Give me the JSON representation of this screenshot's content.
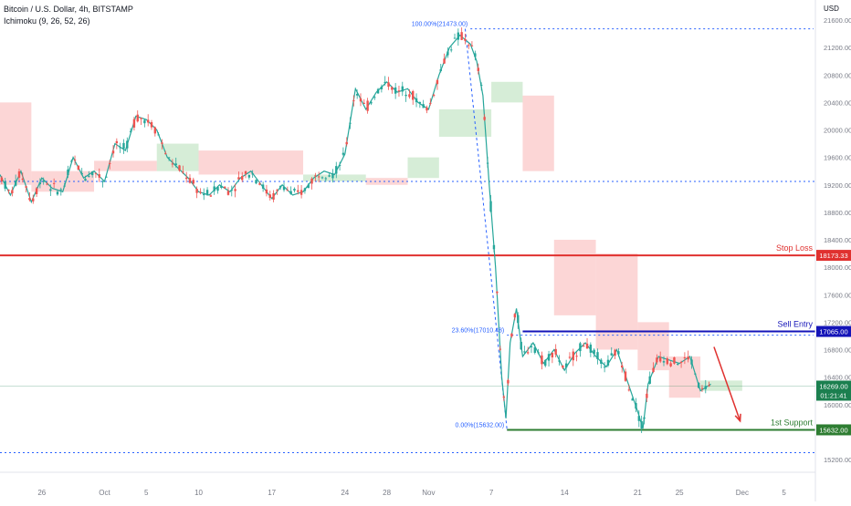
{
  "chart_data": {
    "type": "candlestick",
    "title": "Bitcoin / U.S. Dollar, 4h, BITSTAMP",
    "indicator": "Ichimoku (9, 26, 52, 26)",
    "currency_label": "USD",
    "ylim": [
      15000,
      21600
    ],
    "x_ticks": [
      {
        "label": "26",
        "day": -5
      },
      {
        "label": "Oct",
        "day": 1
      },
      {
        "label": "5",
        "day": 5
      },
      {
        "label": "10",
        "day": 10
      },
      {
        "label": "17",
        "day": 17
      },
      {
        "label": "24",
        "day": 24
      },
      {
        "label": "28",
        "day": 28
      },
      {
        "label": "Nov",
        "day": 32
      },
      {
        "label": "7",
        "day": 38
      },
      {
        "label": "14",
        "day": 45
      },
      {
        "label": "21",
        "day": 52
      },
      {
        "label": "25",
        "day": 56
      },
      {
        "label": "Dec",
        "day": 62
      },
      {
        "label": "5",
        "day": 66
      }
    ],
    "y_ticks": [
      "21600.00",
      "21200.00",
      "20800.00",
      "20400.00",
      "20000.00",
      "19600.00",
      "19200.00",
      "18800.00",
      "18400.00",
      "18000.00",
      "17600.00",
      "17200.00",
      "16800.00",
      "16400.00",
      "16000.00",
      "15600.00",
      "15200.00"
    ],
    "y_tick_values": [
      21600,
      21200,
      20800,
      20400,
      20000,
      19600,
      19200,
      18800,
      18400,
      18000,
      17600,
      17200,
      16800,
      16400,
      16000,
      15600,
      15200
    ],
    "price_path": [
      [
        -9,
        19350
      ],
      [
        -8,
        19050
      ],
      [
        -7,
        19400
      ],
      [
        -6,
        18950
      ],
      [
        -5,
        19300
      ],
      [
        -4,
        19150
      ],
      [
        -3,
        19100
      ],
      [
        -2,
        19600
      ],
      [
        -1,
        19300
      ],
      [
        0,
        19400
      ],
      [
        1,
        19250
      ],
      [
        2,
        19800
      ],
      [
        3,
        19700
      ],
      [
        4,
        20200
      ],
      [
        5,
        20150
      ],
      [
        6,
        20000
      ],
      [
        7,
        19600
      ],
      [
        8,
        19450
      ],
      [
        9,
        19300
      ],
      [
        10,
        19100
      ],
      [
        11,
        19050
      ],
      [
        12,
        19200
      ],
      [
        13,
        19100
      ],
      [
        14,
        19300
      ],
      [
        15,
        19400
      ],
      [
        16,
        19200
      ],
      [
        17,
        19000
      ],
      [
        18,
        19200
      ],
      [
        19,
        19050
      ],
      [
        20,
        19100
      ],
      [
        21,
        19300
      ],
      [
        22,
        19400
      ],
      [
        23,
        19350
      ],
      [
        24,
        19650
      ],
      [
        25,
        20600
      ],
      [
        26,
        20300
      ],
      [
        27,
        20550
      ],
      [
        28,
        20700
      ],
      [
        29,
        20550
      ],
      [
        30,
        20600
      ],
      [
        31,
        20400
      ],
      [
        32,
        20300
      ],
      [
        33,
        20800
      ],
      [
        34,
        21200
      ],
      [
        35,
        21380
      ],
      [
        36,
        21250
      ],
      [
        36.6,
        21000
      ],
      [
        37.2,
        20500
      ],
      [
        37.8,
        19200
      ],
      [
        38.4,
        18000
      ],
      [
        39.0,
        16400
      ],
      [
        39.4,
        15800
      ],
      [
        39.8,
        16900
      ],
      [
        40.4,
        17400
      ],
      [
        41,
        16700
      ],
      [
        42,
        16900
      ],
      [
        43,
        16600
      ],
      [
        44,
        16800
      ],
      [
        45,
        16500
      ],
      [
        46,
        16750
      ],
      [
        47,
        16900
      ],
      [
        48,
        16700
      ],
      [
        49,
        16550
      ],
      [
        50,
        16800
      ],
      [
        51,
        16350
      ],
      [
        52,
        15900
      ],
      [
        52.5,
        15650
      ],
      [
        53,
        16300
      ],
      [
        54,
        16700
      ],
      [
        55,
        16650
      ],
      [
        56,
        16600
      ],
      [
        57,
        16700
      ],
      [
        58,
        16200
      ],
      [
        59,
        16300
      ]
    ],
    "kumo_segments": [
      {
        "from_day": -9,
        "to_day": -6,
        "span_a": 20400,
        "span_b": 19200,
        "bullish": false
      },
      {
        "from_day": -6,
        "to_day": 0,
        "span_a": 19400,
        "span_b": 19100,
        "bullish": false
      },
      {
        "from_day": 0,
        "to_day": 6,
        "span_a": 19550,
        "span_b": 19400,
        "bullish": false
      },
      {
        "from_day": 6,
        "to_day": 10,
        "span_a": 19800,
        "span_b": 19400,
        "bullish": true
      },
      {
        "from_day": 10,
        "to_day": 20,
        "span_a": 19700,
        "span_b": 19350,
        "bullish": false
      },
      {
        "from_day": 20,
        "to_day": 26,
        "span_a": 19350,
        "span_b": 19250,
        "bullish": true
      },
      {
        "from_day": 26,
        "to_day": 30,
        "span_a": 19300,
        "span_b": 19200,
        "bullish": false
      },
      {
        "from_day": 30,
        "to_day": 33,
        "span_a": 19600,
        "span_b": 19300,
        "bullish": true
      },
      {
        "from_day": 33,
        "to_day": 38,
        "span_a": 20300,
        "span_b": 19900,
        "bullish": true
      },
      {
        "from_day": 38,
        "to_day": 41,
        "span_a": 20700,
        "span_b": 20400,
        "bullish": true
      },
      {
        "from_day": 41,
        "to_day": 44,
        "span_a": 19400,
        "span_b": 20500,
        "bullish": false
      },
      {
        "from_day": 44,
        "to_day": 48,
        "span_a": 17300,
        "span_b": 18400,
        "bullish": false
      },
      {
        "from_day": 48,
        "to_day": 52,
        "span_a": 16800,
        "span_b": 18200,
        "bullish": false
      },
      {
        "from_day": 52,
        "to_day": 55,
        "span_a": 16500,
        "span_b": 17200,
        "bullish": false
      },
      {
        "from_day": 55,
        "to_day": 58,
        "span_a": 16100,
        "span_b": 16700,
        "bullish": false
      },
      {
        "from_day": 58,
        "to_day": 62,
        "span_a": 16350,
        "span_b": 16200,
        "bullish": true
      }
    ],
    "fib_levels": [
      {
        "label": "100.00%(21473.00)",
        "price": 21473,
        "from_day": 36
      },
      {
        "label": "23.60%(17010.48)",
        "price": 17010.48,
        "from_day": 39.5
      },
      {
        "label": "0.00%(15632.00)",
        "price": 15632,
        "from_day": 39.5
      }
    ],
    "fib_trend": {
      "from": [
        35.5,
        21473
      ],
      "to": [
        39.5,
        15632
      ]
    },
    "dotted_levels": [
      19250,
      15300
    ],
    "key_levels": [
      {
        "name": "Stop Loss",
        "price": 18173.33,
        "tag": "18173.33",
        "color": "#e0312f",
        "from_day": -9
      },
      {
        "name": "Sell Entry",
        "price": 17065.0,
        "tag": "17065.00",
        "color": "#1414b8",
        "from_day": 41
      },
      {
        "name": "1st Support",
        "price": 15632.0,
        "tag": "15632.00",
        "color": "#2e7d32",
        "from_day": 39.5
      }
    ],
    "current_price": {
      "value": "16269.00",
      "countdown": "01:21:41",
      "price": 16269,
      "color": "#1b7f4f"
    },
    "projection_arrow": {
      "from": [
        59.3,
        16840
      ],
      "to": [
        61.8,
        15760
      ],
      "color": "#e0312f"
    }
  }
}
